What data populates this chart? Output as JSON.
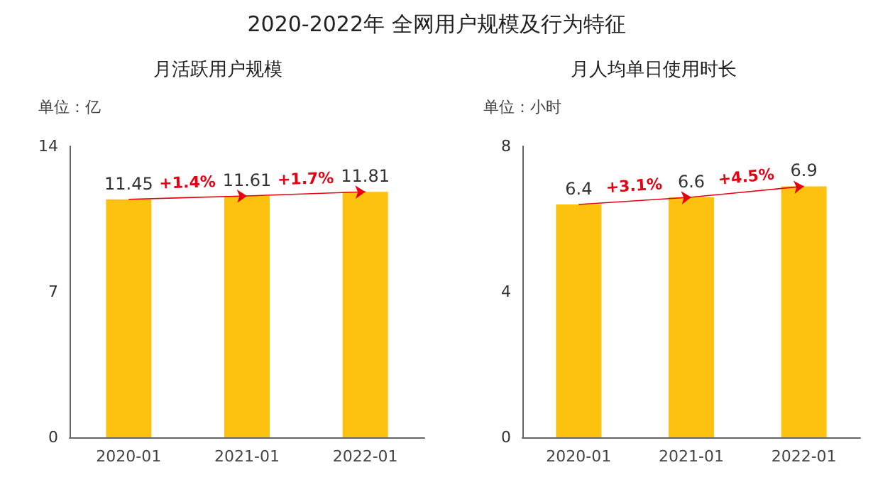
{
  "chart_data": [
    {
      "type": "bar",
      "title": "2020-2022年 全网用户规模及行为特征",
      "subtitle": "月活跃用户规模",
      "ylabel": "单位：亿",
      "categories": [
        "2020-01",
        "2021-01",
        "2022-01"
      ],
      "values": [
        11.45,
        11.61,
        11.81
      ],
      "color": "#fcc20f",
      "ylim": [
        0,
        14
      ],
      "yticks": [
        0,
        7,
        14
      ],
      "grid": false,
      "data_labels": true,
      "annotations": [
        "+1.4%",
        "+1.7%"
      ]
    },
    {
      "type": "bar",
      "subtitle": "月人均单日使用时长",
      "ylabel": "单位：小时",
      "categories": [
        "2020-01",
        "2021-01",
        "2022-01"
      ],
      "values": [
        6.4,
        6.6,
        6.9
      ],
      "color": "#fcc20f",
      "ylim": [
        0,
        8
      ],
      "yticks": [
        0,
        4,
        8
      ],
      "grid": false,
      "data_labels": true,
      "annotations": [
        "+3.1%",
        "+4.5%"
      ]
    }
  ]
}
